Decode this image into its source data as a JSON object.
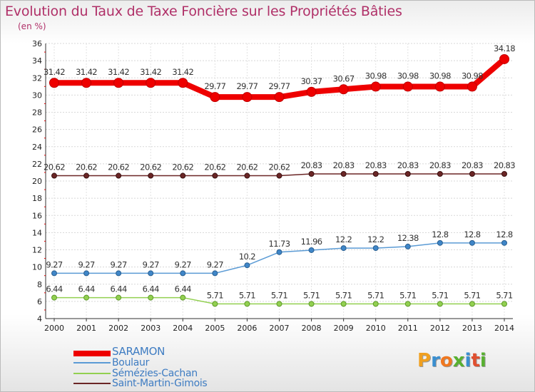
{
  "logo": {
    "letters": [
      "P",
      "r",
      "o",
      "x",
      "i",
      "t",
      "i"
    ],
    "colors": [
      "#f0a020",
      "#3a8fd0",
      "#f07820",
      "#58b030",
      "#3a8fd0",
      "#e05030",
      "#58b030"
    ]
  },
  "chart_data": {
    "type": "line",
    "title": "Evolution du Taux de Taxe Foncière sur les Propriétés Bâties",
    "ylabel": "(en %)",
    "xlabel": "",
    "ylim": [
      4,
      36
    ],
    "yticks": [
      4,
      6,
      8,
      10,
      12,
      14,
      16,
      18,
      20,
      22,
      24,
      26,
      28,
      30,
      32,
      34,
      36
    ],
    "grid": true,
    "legend_position": "bottom-left",
    "categories": [
      "2000",
      "2001",
      "2002",
      "2003",
      "2004",
      "2005",
      "2006",
      "2007",
      "2008",
      "2009",
      "2010",
      "2011",
      "2012",
      "2013",
      "2014"
    ],
    "series": [
      {
        "name": "SARAMON",
        "color": "#ee0000",
        "values": [
          31.42,
          31.42,
          31.42,
          31.42,
          31.42,
          29.77,
          29.77,
          29.77,
          30.37,
          30.67,
          30.98,
          30.98,
          30.98,
          30.98,
          34.18
        ],
        "labels": [
          "31.42",
          "31.42",
          "31.42",
          "31.42",
          "31.42",
          "29.77",
          "29.77",
          "29.77",
          "30.37",
          "30.67",
          "30.98",
          "30.98",
          "30.98",
          "30.98",
          "34.18"
        ]
      },
      {
        "name": "Boulaur",
        "color": "#5b9bd5",
        "values": [
          9.27,
          9.27,
          9.27,
          9.27,
          9.27,
          9.27,
          10.2,
          11.73,
          11.96,
          12.2,
          12.2,
          12.38,
          12.8,
          12.8,
          12.8
        ],
        "labels": [
          "9.27",
          "9.27",
          "9.27",
          "9.27",
          "9.27",
          "9.27",
          "10.2",
          "11.73",
          "11.96",
          "12.2",
          "12.2",
          "12.38",
          "12.8",
          "12.8",
          "12.8"
        ]
      },
      {
        "name": "Sémézies-Cachan",
        "color": "#92d050",
        "values": [
          6.44,
          6.44,
          6.44,
          6.44,
          6.44,
          5.71,
          5.71,
          5.71,
          5.71,
          5.71,
          5.71,
          5.71,
          5.71,
          5.71,
          5.71
        ],
        "labels": [
          "6.44",
          "6.44",
          "6.44",
          "6.44",
          "6.44",
          "5.71",
          "5.71",
          "5.71",
          "5.71",
          "5.71",
          "5.71",
          "5.71",
          "5.71",
          "5.71",
          "5.71"
        ]
      },
      {
        "name": "Saint-Martin-Gimois",
        "color": "#6b2626",
        "values": [
          20.62,
          20.62,
          20.62,
          20.62,
          20.62,
          20.62,
          20.62,
          20.62,
          20.83,
          20.83,
          20.83,
          20.83,
          20.83,
          20.83,
          20.83
        ],
        "labels": [
          "20.62",
          "20.62",
          "20.62",
          "20.62",
          "20.62",
          "20.62",
          "20.62",
          "20.62",
          "20.83",
          "20.83",
          "20.83",
          "20.83",
          "20.83",
          "20.83",
          "20.83"
        ]
      }
    ]
  }
}
